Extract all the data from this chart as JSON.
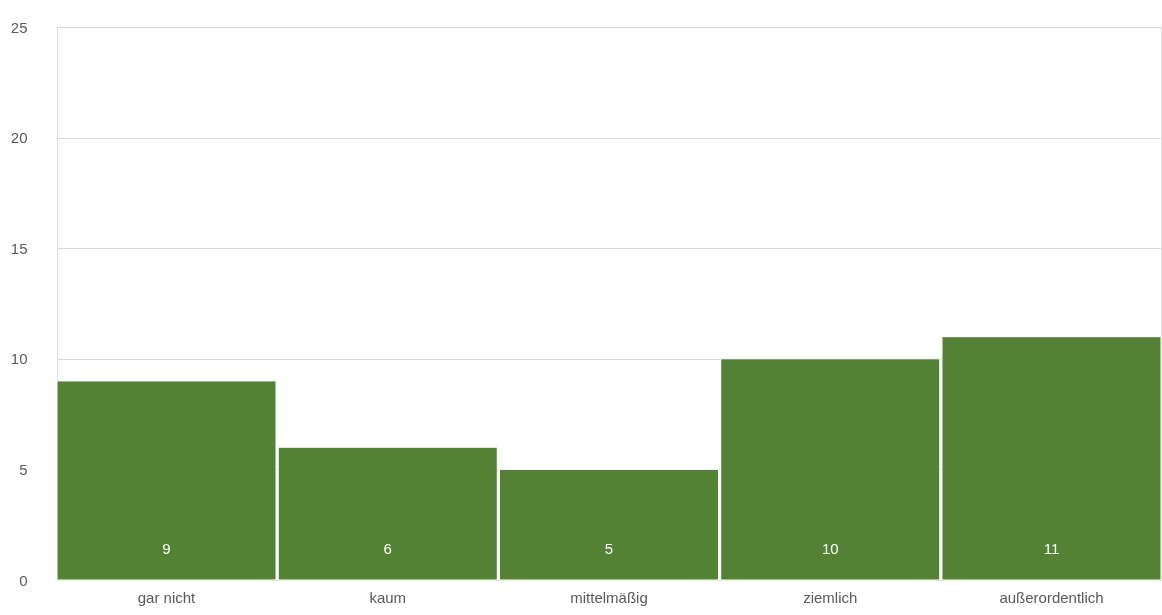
{
  "chart_data": {
    "type": "bar",
    "categories": [
      "gar nicht",
      "kaum",
      "mittelmäßig",
      "ziemlich",
      "außerordentlich"
    ],
    "values": [
      9,
      6,
      5,
      10,
      11
    ],
    "color": "#548235",
    "ylim": [
      0,
      25
    ],
    "yticks": [
      0,
      5,
      10,
      15,
      20,
      25
    ],
    "grid": "y",
    "data_labels": true
  }
}
